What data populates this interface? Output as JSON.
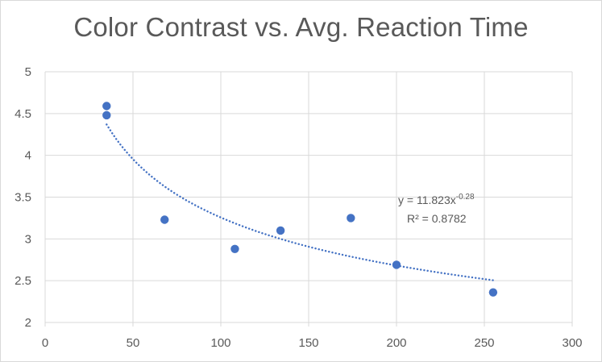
{
  "chart_data": {
    "type": "scatter",
    "title": "Color Contrast vs. Avg. Reaction Time",
    "xlabel": "",
    "ylabel": "",
    "xlim": [
      0,
      300
    ],
    "ylim": [
      2,
      5
    ],
    "x_ticks": [
      0,
      50,
      100,
      150,
      200,
      250,
      300
    ],
    "y_ticks": [
      2,
      2.5,
      3,
      3.5,
      4,
      4.5,
      5
    ],
    "y_tick_labels": [
      "2",
      "2.5",
      "3",
      "3.5",
      "4",
      "4.5",
      "5"
    ],
    "grid": true,
    "series": [
      {
        "name": "Avg. Reaction Time",
        "x": [
          35,
          35,
          68,
          108,
          134,
          174,
          200,
          255
        ],
        "y": [
          4.59,
          4.48,
          3.23,
          2.88,
          3.1,
          3.25,
          2.69,
          2.36
        ]
      }
    ],
    "trendline": {
      "type": "power",
      "a": 11.823,
      "b": -0.28,
      "x_range": [
        35,
        255
      ],
      "equation_text": "y = 11.823x",
      "equation_exponent": "-0.28",
      "r2_text": "R² = 0.8782"
    },
    "colors": {
      "marker": "#4472c4",
      "trendline": "#4472c4",
      "grid": "#d9d9d9",
      "text": "#595959"
    }
  }
}
